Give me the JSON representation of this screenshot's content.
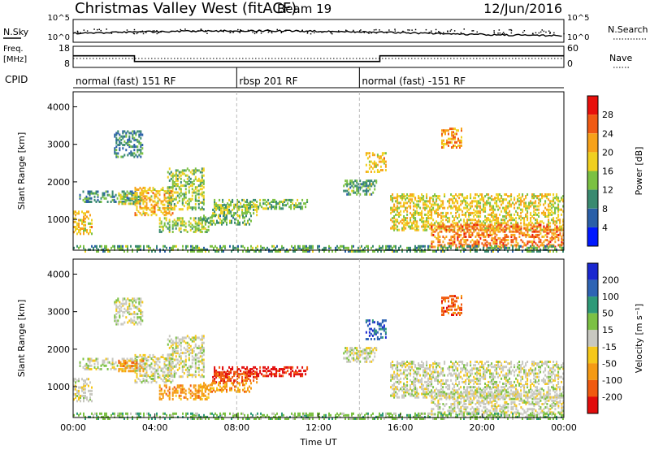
{
  "header": {
    "title": "Christmas Valley West (fitACF)",
    "beam": "Beam 19",
    "date": "12/Jun/2016"
  },
  "chart_data": {
    "type": "heatmap",
    "x_axis": {
      "label": "Time UT",
      "ticks": [
        "00:00",
        "04:00",
        "08:00",
        "12:00",
        "16:00",
        "20:00",
        "00:00"
      ],
      "range_hours": [
        0,
        24
      ]
    },
    "y_axis_label": "Slant Range [km]",
    "y_ticks": [
      "1000",
      "2000",
      "3000",
      "4000"
    ],
    "y_range_km": [
      180,
      4400
    ],
    "mode_changes_hours": [
      8,
      14
    ],
    "noise_panel": {
      "left_label": "N.Sky",
      "right_label": "N.Search",
      "left_ticks": [
        "10^5",
        "10^0"
      ],
      "right_ticks": [
        "10^5",
        "10^0"
      ]
    },
    "freq_panel": {
      "left_label_1": "Freq.",
      "left_label_2": "[MHz]",
      "right_label": "Nave",
      "left_ticks": [
        "18",
        "8"
      ],
      "right_ticks": [
        "60",
        "0"
      ],
      "freq_steps": [
        {
          "start_h": 0,
          "end_h": 3,
          "level": 0.55
        },
        {
          "start_h": 3,
          "end_h": 15,
          "level": 0.28
        },
        {
          "start_h": 15,
          "end_h": 24,
          "level": 0.55
        }
      ]
    },
    "cpid": {
      "label": "CPID",
      "segments": [
        {
          "start_h": 0,
          "end_h": 8,
          "name": "normal (fast) 151 RF"
        },
        {
          "start_h": 8,
          "end_h": 14,
          "name": "rbsp 201 RF"
        },
        {
          "start_h": 14,
          "end_h": 24,
          "name": "normal (fast) -151 RF"
        }
      ]
    },
    "power_panel": {
      "colorbar_label": "Power [dB]",
      "colorbar_ticks": [
        "4",
        "8",
        "12",
        "16",
        "20",
        "24",
        "28"
      ],
      "colors": [
        "#0018ff",
        "#2a5fa8",
        "#3a8a70",
        "#7bc142",
        "#f0d020",
        "#f7a21a",
        "#f05a14",
        "#e8100c"
      ]
    },
    "velocity_panel": {
      "colorbar_label": "Velocity [m s⁻¹]",
      "colorbar_ticks": [
        "200",
        "100",
        "50",
        "15",
        "-15",
        "-50",
        "-100",
        "-200"
      ],
      "colors": [
        "#1a28d0",
        "#2e64b4",
        "#2e9a78",
        "#7cc144",
        "#c8c8c0",
        "#f6c81a",
        "#f59a14",
        "#f05a10",
        "#e20c0c"
      ]
    },
    "echo_regions": [
      {
        "t0": 0.0,
        "t1": 0.9,
        "r0": 650,
        "r1": 1250,
        "power": 0.62,
        "vel": 4
      },
      {
        "t0": 0.3,
        "t1": 3.2,
        "r0": 1500,
        "r1": 1800,
        "power": 0.28,
        "vel": 4
      },
      {
        "t0": 2.0,
        "t1": 3.4,
        "r0": 2700,
        "r1": 3400,
        "power": 0.25,
        "vel": 4
      },
      {
        "t0": 3.0,
        "t1": 4.9,
        "r0": 1150,
        "r1": 1900,
        "power": 0.64,
        "vel": 4
      },
      {
        "t0": 4.6,
        "t1": 6.4,
        "r0": 1300,
        "r1": 2400,
        "power": 0.45,
        "vel": 4
      },
      {
        "t0": 2.2,
        "t1": 3.4,
        "r0": 1450,
        "r1": 1750,
        "power": 0.5,
        "vel": 6
      },
      {
        "t0": 4.2,
        "t1": 6.6,
        "r0": 700,
        "r1": 1100,
        "power": 0.45,
        "vel": 6
      },
      {
        "t0": 6.8,
        "t1": 11.5,
        "r0": 1320,
        "r1": 1580,
        "power": 0.4,
        "vel": 8
      },
      {
        "t0": 6.8,
        "t1": 9.0,
        "r0": 1150,
        "r1": 1450,
        "power": 0.46,
        "vel": 7
      },
      {
        "t0": 6.2,
        "t1": 8.7,
        "r0": 900,
        "r1": 1150,
        "power": 0.38,
        "vel": 6
      },
      {
        "t0": 13.2,
        "t1": 14.8,
        "r0": 1700,
        "r1": 2100,
        "power": 0.35,
        "vel": 4
      },
      {
        "t0": 14.3,
        "t1": 15.3,
        "r0": 2300,
        "r1": 2800,
        "power": 0.62,
        "vel": 1
      },
      {
        "t0": 15.5,
        "t1": 24.0,
        "r0": 750,
        "r1": 1700,
        "power": 0.58,
        "vel": 4
      },
      {
        "t0": 17.5,
        "t1": 24.0,
        "r0": 300,
        "r1": 900,
        "power": 0.8,
        "vel": 4
      },
      {
        "t0": 18.0,
        "t1": 19.0,
        "r0": 2950,
        "r1": 3450,
        "power": 0.7,
        "vel": 7
      },
      {
        "t0": 0.0,
        "t1": 24.0,
        "r0": 180,
        "r1": 330,
        "power": 0.35,
        "vel": 3
      }
    ]
  }
}
